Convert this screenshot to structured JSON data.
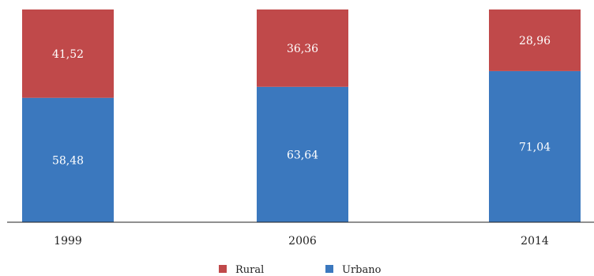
{
  "chart_data": {
    "type": "bar",
    "stacked": true,
    "normalized": true,
    "categories": [
      "1999",
      "2006",
      "2014"
    ],
    "series": [
      {
        "name": "Urbano",
        "values": [
          58.48,
          63.64,
          71.04
        ],
        "labels": [
          "58,48",
          "63,64",
          "71,04"
        ],
        "color": "#3b78be"
      },
      {
        "name": "Rural",
        "values": [
          41.52,
          36.36,
          28.96
        ],
        "labels": [
          "41,52",
          "36,36",
          "28,96"
        ],
        "color": "#c0494a"
      }
    ],
    "ylim": [
      0,
      100
    ],
    "grid": false,
    "legend_position": "bottom-center"
  }
}
